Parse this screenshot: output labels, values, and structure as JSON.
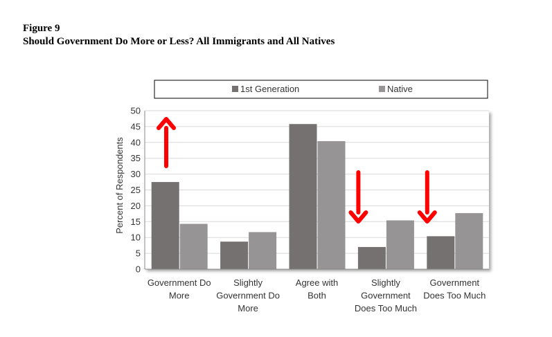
{
  "figure": {
    "label": "Figure 9",
    "title": "Should Government Do More or Less? All Immigrants and All Natives"
  },
  "chart_data": {
    "type": "bar",
    "categories": [
      [
        "Government Do",
        "More"
      ],
      [
        "Slightly",
        "Government Do",
        "More"
      ],
      [
        "Agree with",
        "Both"
      ],
      [
        "Slightly",
        "Government",
        "Does Too Much"
      ],
      [
        "Government",
        "Does Too Much"
      ]
    ],
    "series": [
      {
        "name": "1st Generation",
        "color": "#767171",
        "values": [
          27.5,
          8.7,
          45.8,
          7.0,
          10.4
        ]
      },
      {
        "name": "Native",
        "color": "#969494",
        "values": [
          14.3,
          11.7,
          40.4,
          15.4,
          17.7
        ]
      }
    ],
    "ylabel": "Percent of Respondents",
    "ylim": [
      0,
      50
    ],
    "yticks": [
      0,
      5,
      10,
      15,
      20,
      25,
      30,
      35,
      40,
      45,
      50
    ],
    "grid": true,
    "legend_position": "top",
    "annotations": [
      {
        "type": "arrow",
        "direction": "up",
        "category_index": 0,
        "color": "#ff0000"
      },
      {
        "type": "arrow",
        "direction": "down",
        "category_index": 3,
        "color": "#ff0000"
      },
      {
        "type": "arrow",
        "direction": "down",
        "category_index": 4,
        "color": "#ff0000"
      }
    ]
  }
}
